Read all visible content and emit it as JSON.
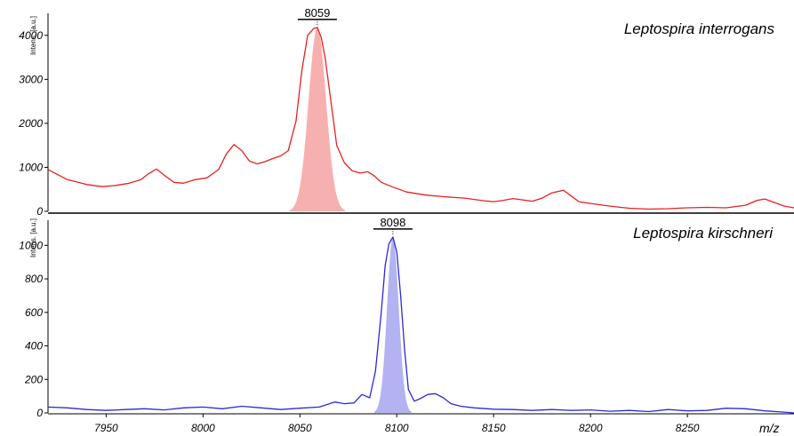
{
  "chart_data": [
    {
      "type": "line",
      "title": "Leptospira interrogans",
      "ylabel": "Intens. [a.u.]",
      "xlim": [
        7920,
        8305
      ],
      "ylim": [
        0,
        4500
      ],
      "yticks": [
        0,
        1000,
        2000,
        3000,
        4000
      ],
      "line_color": "#e8201f",
      "fill_color": "#f7b0b0",
      "peak": {
        "label": "8059",
        "x": 8059,
        "y": 4180,
        "width": 4.5
      },
      "x": [
        7920,
        7930,
        7940,
        7948,
        7955,
        7962,
        7968,
        7972,
        7976,
        7980,
        7985,
        7990,
        7996,
        8002,
        8008,
        8012,
        8016,
        8020,
        8024,
        8028,
        8032,
        8036,
        8040,
        8044,
        8048,
        8051,
        8054,
        8057,
        8059,
        8061,
        8063,
        8066,
        8069,
        8073,
        8077,
        8081,
        8085,
        8088,
        8092,
        8098,
        8105,
        8115,
        8125,
        8135,
        8145,
        8150,
        8155,
        8160,
        8165,
        8170,
        8175,
        8180,
        8186,
        8190,
        8194,
        8200,
        8210,
        8220,
        8230,
        8240,
        8250,
        8260,
        8270,
        8280,
        8286,
        8290,
        8295,
        8300,
        8305
      ],
      "y": [
        950,
        720,
        610,
        560,
        590,
        640,
        720,
        860,
        960,
        820,
        660,
        640,
        720,
        760,
        950,
        1300,
        1520,
        1380,
        1140,
        1080,
        1130,
        1200,
        1260,
        1380,
        2050,
        3200,
        4000,
        4150,
        4180,
        3950,
        3500,
        2500,
        1500,
        1100,
        920,
        870,
        900,
        820,
        660,
        550,
        440,
        370,
        330,
        300,
        240,
        220,
        250,
        290,
        260,
        230,
        300,
        420,
        480,
        350,
        220,
        180,
        120,
        70,
        50,
        60,
        80,
        90,
        80,
        140,
        250,
        280,
        200,
        120,
        80
      ]
    },
    {
      "type": "line",
      "title": "Leptospira kirschneri",
      "ylabel": "Intens. [a.u.]",
      "xlabel": "m/z",
      "xlim": [
        7920,
        8305
      ],
      "ylim": [
        0,
        1150
      ],
      "yticks": [
        0,
        200,
        400,
        600,
        800,
        1000
      ],
      "xticks": [
        7950,
        8000,
        8050,
        8100,
        8150,
        8200,
        8250
      ],
      "line_color": "#2a2ad8",
      "fill_color": "#b3b3f2",
      "peak": {
        "label": "8098",
        "x": 8098,
        "y": 1050,
        "width": 3.0
      },
      "x": [
        7920,
        7930,
        7940,
        7950,
        7960,
        7970,
        7980,
        7990,
        8000,
        8010,
        8020,
        8030,
        8040,
        8050,
        8060,
        8068,
        8073,
        8078,
        8082,
        8086,
        8089,
        8092,
        8094,
        8096,
        8098,
        8100,
        8102,
        8104,
        8106,
        8109,
        8112,
        8116,
        8120,
        8124,
        8128,
        8133,
        8140,
        8150,
        8160,
        8170,
        8180,
        8190,
        8200,
        8210,
        8220,
        8230,
        8240,
        8250,
        8260,
        8270,
        8280,
        8290,
        8300,
        8305
      ],
      "y": [
        35,
        30,
        20,
        15,
        20,
        25,
        18,
        30,
        35,
        25,
        40,
        30,
        20,
        28,
        35,
        65,
        55,
        60,
        110,
        90,
        250,
        600,
        880,
        1010,
        1050,
        960,
        700,
        380,
        140,
        70,
        85,
        110,
        115,
        90,
        55,
        40,
        30,
        22,
        20,
        15,
        20,
        15,
        18,
        10,
        15,
        8,
        20,
        12,
        15,
        28,
        25,
        12,
        5,
        0
      ]
    }
  ]
}
